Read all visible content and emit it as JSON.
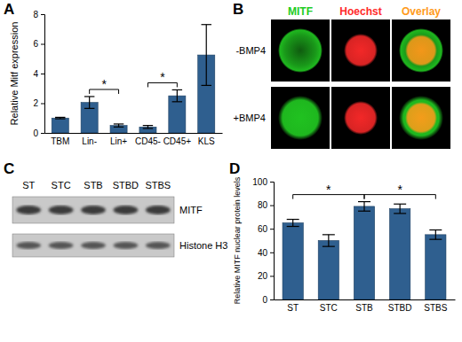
{
  "chart_data": [
    {
      "type": "bar",
      "title": "A",
      "y_label": "Relative Mitf expression",
      "categories": [
        "TBM",
        "Lin-",
        "Lin+",
        "CD45-",
        "CD45+",
        "KLS"
      ],
      "values": [
        1.0,
        2.05,
        0.5,
        0.4,
        2.5,
        5.25
      ],
      "errors": [
        0.05,
        0.4,
        0.1,
        0.1,
        0.4,
        2.05
      ],
      "color": "#2f5f8f",
      "ylim": [
        0,
        8
      ],
      "yticks": [
        0,
        2,
        4,
        6,
        8
      ],
      "annotations": [
        {
          "text": "*",
          "from": "Lin-",
          "to": "Lin+"
        },
        {
          "text": "*",
          "from": "CD45-",
          "to": "CD45+"
        }
      ]
    },
    {
      "type": "micrograph",
      "title": "B",
      "columns": [
        "MITF",
        "Hoechst",
        "Overlay"
      ],
      "colors": [
        "#22cc22",
        "#ff2a2a",
        "#ff9a1a"
      ],
      "rows": [
        "-BMP4",
        "+BMP4"
      ]
    },
    {
      "type": "blot",
      "title": "C",
      "categories": [
        "ST",
        "STC",
        "STB",
        "STBD",
        "STBS"
      ],
      "rows": [
        "MITF",
        "Histone H3"
      ]
    },
    {
      "type": "bar",
      "title": "D",
      "y_label": "Relative MITF nuclear protein levels",
      "categories": [
        "ST",
        "STC",
        "STB",
        "STBD",
        "STBS"
      ],
      "values": [
        65,
        50,
        79,
        77,
        55
      ],
      "errors": [
        3,
        5,
        4,
        4,
        4
      ],
      "color": "#2f5f8f",
      "ylim": [
        0,
        100
      ],
      "yticks": [
        0,
        20,
        40,
        60,
        80,
        100
      ],
      "annotations": [
        {
          "text": "*",
          "from": "ST",
          "to": "STB"
        },
        {
          "text": "*",
          "from": "STB",
          "to": "STBS"
        }
      ]
    }
  ]
}
